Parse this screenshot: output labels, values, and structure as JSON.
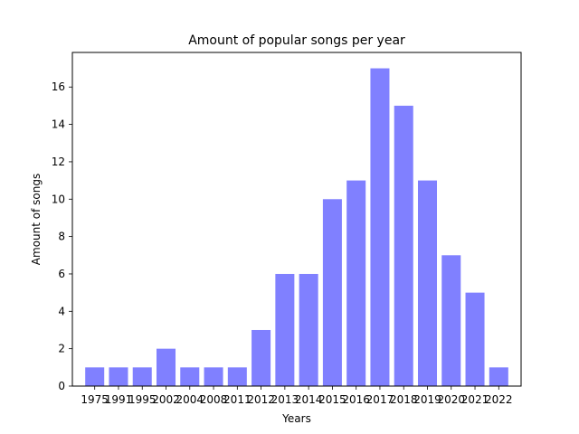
{
  "chart_data": {
    "type": "bar",
    "title": "Amount of popular songs per year",
    "xlabel": "Years",
    "ylabel": "Amount of songs",
    "categories": [
      "1975",
      "1991",
      "1995",
      "2002",
      "2004",
      "2008",
      "2011",
      "2012",
      "2013",
      "2014",
      "2015",
      "2016",
      "2017",
      "2018",
      "2019",
      "2020",
      "2021",
      "2022"
    ],
    "values": [
      1,
      1,
      1,
      2,
      1,
      1,
      1,
      3,
      6,
      6,
      10,
      11,
      17,
      15,
      11,
      7,
      5,
      1
    ],
    "ylim": [
      0,
      17.85
    ],
    "yticks": [
      0,
      2,
      4,
      6,
      8,
      10,
      12,
      14,
      16
    ],
    "bar_color": "#8080ff",
    "grid": false,
    "legend": "none"
  }
}
